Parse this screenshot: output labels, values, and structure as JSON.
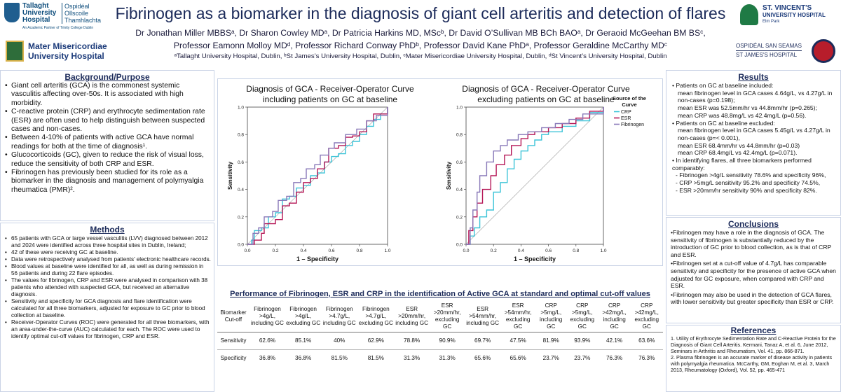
{
  "header": {
    "title": "Fibrinogen as a biomarker in the diagnosis of giant cell arteritis and detection of flares",
    "authors_line1": "Dr Jonathan Miller MBBSᵃ, Dr Sharon Cowley MDᵃ, Dr Patricia Harkins MD, MScᵇ, Dr David O’Sullivan MB BCh BAOᵃ, Dr Geraoid McGeehan BM BSᶜ,",
    "authors_line2": "Professor Eamonn Molloy MDᵈ, Professor Richard Conway PhDᵇ, Professor David Kane PhDᵃ, Professor Geraldine McCarthy MDᶜ",
    "affiliations": "ᵃTallaght University Hospital, Dublin, ᵇSt James’s University Hospital, Dublin, ᶜMater Misericordiae University Hospital, Dublin, ᵈSt Vincent’s University Hospital, Dublin"
  },
  "logos": {
    "tallaght_line1": "Tallaght",
    "tallaght_line2": "University",
    "tallaght_line3": "Hospital",
    "tallaght_irish1": "Ospidéal",
    "tallaght_irish2": "Ollscoile",
    "tallaght_irish3": "Thamhlachta",
    "tallaght_partner": "An Academic Partner of Trinity College Dublin",
    "mater_line1": "Mater Misericordiae",
    "mater_line2": "University Hospital",
    "svuh_line1": "ST. VINCENT'S",
    "svuh_line2": "UNIVERSITY HOSPITAL",
    "svuh_line3": "Elm Park",
    "sjh_line1": "OSPIDÉAL SAN SEAMAS",
    "sjh_line2": "ST JAMES'S HOSPITAL"
  },
  "background": {
    "title": "Background/Purpose",
    "items": [
      "Giant cell arteritis (GCA) is the commonest systemic vasculitis affecting over-50s. It is associated with high morbidity.",
      "C-reactive protein (CRP) and erythrocyte sedimentation rate (ESR) are often used to help distinguish between suspected cases and non-cases.",
      "Between 4-10% of patients with active GCA have normal readings for both at the time of diagnosis¹.",
      "Glucocorticoids (GC), given to reduce the risk of visual loss, reduce the sensitivity of both CRP and ESR.",
      "Fibrinogen has previously been studied for its role as a biomarker in the diagnosis and management of polymyalgia rheumatica (PMR)²."
    ]
  },
  "methods": {
    "title": "Methods",
    "items": [
      "65 patients with GCA or large vessel vasculitis (LVV) diagnosed between 2012 and 2024 were identified across three hospital sites in Dublin, Ireland;",
      "42 of these were receiving GC at baseline.",
      "Data were retrospectively analysed from patients’ electronic healthcare records.",
      "Blood values at baseline were identified for all, as well as during remission in 56 patients and during 22 flare episodes.",
      "The values for fibrinogen, CRP and ESR were analysed in comparison with 38 patients who attended with suspected GCA, but received an alternative diagnosis.",
      "Sensitivity and specificity for GCA diagnosis and flare identification were calculated for all three biomarkers, adjusted for exposure to GC prior to blood collection at baseline.",
      "Receiver-Operator Curves (ROC) were generated for all three biomarkers, with an area-under-the-curve (AUC) calculated for each. The ROC were used to identify optimal cut-off values for fibrinogen, CRP and ESR."
    ]
  },
  "results": {
    "title": "Results",
    "groups": [
      {
        "bullet": "Patients on GC at baseline included:",
        "lines": [
          "mean fibrinogen level in GCA cases 4.64g/L, vs 4.27g/L in non-cases (p=0.198);",
          "mean ESR was 52.5mm/hr vs 44.8mm/hr (p=0.265);",
          "mean CRP was 48.8mg/L vs 42.4mg/L (p=0.56)."
        ]
      },
      {
        "bullet": "Patients on GC at baseline excluded:",
        "lines": [
          "mean fibrinogen level in GCA cases 5.45g/L vs 4.27g/L in non-cases (p=< 0.001),",
          "mean ESR 68.4mm/hr vs 44.8mm/hr (p=0.03)",
          "mean CRP 68.4mg/L vs 42.4mg/L (p=0.071)."
        ]
      },
      {
        "bullet": "In identifying flares, all three biomarkers performed comparably:",
        "lines": [
          "- Fibrinogen >4g/L sensitivity 78.6% and specificity 96%,",
          "- CRP >5mg/L sensitivity 95.2% and specificity 74.5%,",
          "- ESR >20mm/hr sensitivity 90% and specificity 82%."
        ]
      }
    ]
  },
  "conclusions": {
    "title": "Conclusions",
    "items": [
      "Fibrinogen may have a role in the diagnosis of GCA. The sensitivity of fibrinogen is substantially reduced by the introduction of GC prior to blood collection, as is that of CRP and ESR.",
      "Fibrinogen set at a cut-off value of 4.7g/L has comparable sensitivity and specificity for the presence of active GCA when adjusted for GC exposure, when compared with CRP and ESR.",
      "Fibrinogen may also be used in the detection of GCA flares, with lower sensitivity but greater specificity than ESR or CRP."
    ]
  },
  "references": {
    "title": "References",
    "items": [
      "1. Utility of Erythrocyte Sedimentation Rate and C-Reactive Protein for the Diagnosis of Giant Cell Arteritis. Kermani, Tanaz A, et al. 6, June 2012, Seminars in Arthritis and Rheumatism, Vol. 41, pp. 866-871.",
      "2. Plasma fibrinogen is an accurate marker of disease activity in patients with polymyalgia rheumatica. McCarthy, GM, Eoghan M, et al. 3, March 2013, Rheumatology (Oxford), Vol. 52, pp. 465-471"
    ]
  },
  "table": {
    "title": "Performance of Fibrinogen, ESR and CRP in the identification of Active GCA at standard and optimal cut-off values",
    "corner": "Biomarker Cut-off",
    "columns": [
      "Fibrinogen >4g/L, including GC",
      "Fibrinogen >4g/L, excluding GC",
      "Fibrinogen >4.7g/L, including GC",
      "Fibrinogen >4.7g/L, excluding GC",
      "ESR >20mm/hr, including GC",
      "ESR >20mm/hr, excluding GC",
      "ESR >54mm/hr, including GC",
      "ESR >54mm/hr, excluding GC",
      "CRP >5mg/L, including GC",
      "CRP >5mg/L, excluding GC",
      "CRP >42mg/L, including GC",
      "CRP >42mg/L, excluding GC"
    ],
    "rows": [
      {
        "label": "Sensitivity",
        "values": [
          "62.6%",
          "85.1%",
          "40%",
          "62.9%",
          "78.8%",
          "90.9%",
          "69.7%",
          "47.5%",
          "81.9%",
          "93.9%",
          "42.1%",
          "63.6%"
        ]
      },
      {
        "label": "Specificity",
        "values": [
          "36.8%",
          "36.8%",
          "81.5%",
          "81.5%",
          "31.3%",
          "31.3%",
          "65.6%",
          "65.6%",
          "23.7%",
          "23.7%",
          "76.3%",
          "76.3%"
        ]
      }
    ]
  },
  "colors": {
    "crp": "#3cc4d8",
    "esr": "#b51656",
    "fibrinogen": "#8878b8",
    "accent": "#1c2b5a"
  },
  "chart_data": [
    {
      "type": "line",
      "title": "Diagnosis of GCA - Receiver-Operator Curve including patients on GC at baseline",
      "title_line1": "Diagnosis of GCA - Receiver-Operator Curve",
      "title_line2": "including patients on GC at baseline",
      "xlabel": "1 – Specificity",
      "ylabel": "Sensitivity",
      "xlim": [
        0,
        1
      ],
      "ylim": [
        0,
        1
      ],
      "xticks": [
        "0.0",
        "0.2",
        "0.4",
        "0.6",
        "0.8",
        "1.0"
      ],
      "yticks": [
        "0.0",
        "0.2",
        "0.4",
        "0.6",
        "0.8",
        "1.0"
      ],
      "series": [
        {
          "name": "CRP",
          "points": [
            [
              0,
              0
            ],
            [
              0.03,
              0.03
            ],
            [
              0.05,
              0.1
            ],
            [
              0.1,
              0.12
            ],
            [
              0.15,
              0.2
            ],
            [
              0.2,
              0.23
            ],
            [
              0.25,
              0.33
            ],
            [
              0.3,
              0.35
            ],
            [
              0.35,
              0.41
            ],
            [
              0.4,
              0.43
            ],
            [
              0.45,
              0.5
            ],
            [
              0.5,
              0.52
            ],
            [
              0.55,
              0.6
            ],
            [
              0.6,
              0.64
            ],
            [
              0.65,
              0.66
            ],
            [
              0.7,
              0.72
            ],
            [
              0.75,
              0.75
            ],
            [
              0.8,
              0.8
            ],
            [
              0.85,
              0.86
            ],
            [
              0.9,
              0.91
            ],
            [
              0.95,
              0.95
            ],
            [
              1,
              1
            ]
          ]
        },
        {
          "name": "ESR",
          "points": [
            [
              0,
              0
            ],
            [
              0.05,
              0.03
            ],
            [
              0.1,
              0.08
            ],
            [
              0.12,
              0.15
            ],
            [
              0.2,
              0.18
            ],
            [
              0.25,
              0.28
            ],
            [
              0.3,
              0.3
            ],
            [
              0.35,
              0.38
            ],
            [
              0.4,
              0.45
            ],
            [
              0.45,
              0.48
            ],
            [
              0.5,
              0.55
            ],
            [
              0.55,
              0.6
            ],
            [
              0.58,
              0.7
            ],
            [
              0.65,
              0.72
            ],
            [
              0.7,
              0.78
            ],
            [
              0.75,
              0.79
            ],
            [
              0.8,
              0.82
            ],
            [
              0.85,
              0.9
            ],
            [
              0.9,
              0.95
            ],
            [
              1,
              1
            ]
          ]
        },
        {
          "name": "Fibrinogen",
          "points": [
            [
              0,
              0
            ],
            [
              0.04,
              0.08
            ],
            [
              0.08,
              0.12
            ],
            [
              0.12,
              0.2
            ],
            [
              0.18,
              0.24
            ],
            [
              0.22,
              0.32
            ],
            [
              0.28,
              0.35
            ],
            [
              0.33,
              0.45
            ],
            [
              0.38,
              0.48
            ],
            [
              0.42,
              0.55
            ],
            [
              0.48,
              0.58
            ],
            [
              0.52,
              0.65
            ],
            [
              0.58,
              0.7
            ],
            [
              0.62,
              0.74
            ],
            [
              0.7,
              0.8
            ],
            [
              0.78,
              0.84
            ],
            [
              0.85,
              0.9
            ],
            [
              0.92,
              0.94
            ],
            [
              1,
              1
            ]
          ]
        }
      ]
    },
    {
      "type": "line",
      "title": "Diagnosis of GCA - Receiver-Operator Curve excluding patients on GC at baseline",
      "title_line1": "Diagnosis of GCA - Receiver-Operator Curve",
      "title_line2": "excluding patients on GC at baseline",
      "xlabel": "1 – Specificity",
      "ylabel": "Sensitivity",
      "xlim": [
        0,
        1
      ],
      "ylim": [
        0,
        1
      ],
      "xticks": [
        "0.0",
        "0.2",
        "0.4",
        "0.6",
        "0.8",
        "1.0"
      ],
      "yticks": [
        "0.0",
        "0.2",
        "0.4",
        "0.6",
        "0.8",
        "1.0"
      ],
      "legend_title_line1": "Source of the",
      "legend_title_line2": "Curve",
      "legend": [
        "CRP",
        "ESR",
        "Fibrinogen"
      ],
      "series": [
        {
          "name": "CRP",
          "points": [
            [
              0,
              0
            ],
            [
              0.03,
              0.06
            ],
            [
              0.06,
              0.12
            ],
            [
              0.1,
              0.2
            ],
            [
              0.15,
              0.25
            ],
            [
              0.2,
              0.38
            ],
            [
              0.25,
              0.45
            ],
            [
              0.3,
              0.55
            ],
            [
              0.35,
              0.62
            ],
            [
              0.4,
              0.68
            ],
            [
              0.45,
              0.72
            ],
            [
              0.5,
              0.76
            ],
            [
              0.55,
              0.8
            ],
            [
              0.6,
              0.82
            ],
            [
              0.7,
              0.86
            ],
            [
              0.8,
              0.9
            ],
            [
              0.9,
              0.96
            ],
            [
              1,
              1
            ]
          ]
        },
        {
          "name": "ESR",
          "points": [
            [
              0,
              0
            ],
            [
              0.02,
              0.1
            ],
            [
              0.05,
              0.2
            ],
            [
              0.08,
              0.3
            ],
            [
              0.12,
              0.4
            ],
            [
              0.18,
              0.5
            ],
            [
              0.22,
              0.58
            ],
            [
              0.28,
              0.65
            ],
            [
              0.33,
              0.72
            ],
            [
              0.4,
              0.77
            ],
            [
              0.45,
              0.8
            ],
            [
              0.5,
              0.82
            ],
            [
              0.6,
              0.85
            ],
            [
              0.7,
              0.88
            ],
            [
              0.8,
              0.92
            ],
            [
              0.9,
              0.97
            ],
            [
              1,
              1
            ]
          ]
        },
        {
          "name": "Fibrinogen",
          "points": [
            [
              0,
              0
            ],
            [
              0.03,
              0.12
            ],
            [
              0.05,
              0.25
            ],
            [
              0.08,
              0.38
            ],
            [
              0.1,
              0.5
            ],
            [
              0.15,
              0.6
            ],
            [
              0.2,
              0.68
            ],
            [
              0.25,
              0.72
            ],
            [
              0.3,
              0.76
            ],
            [
              0.38,
              0.8
            ],
            [
              0.45,
              0.82
            ],
            [
              0.55,
              0.85
            ],
            [
              0.65,
              0.88
            ],
            [
              0.75,
              0.91
            ],
            [
              0.85,
              0.95
            ],
            [
              1,
              1
            ]
          ]
        }
      ]
    }
  ]
}
